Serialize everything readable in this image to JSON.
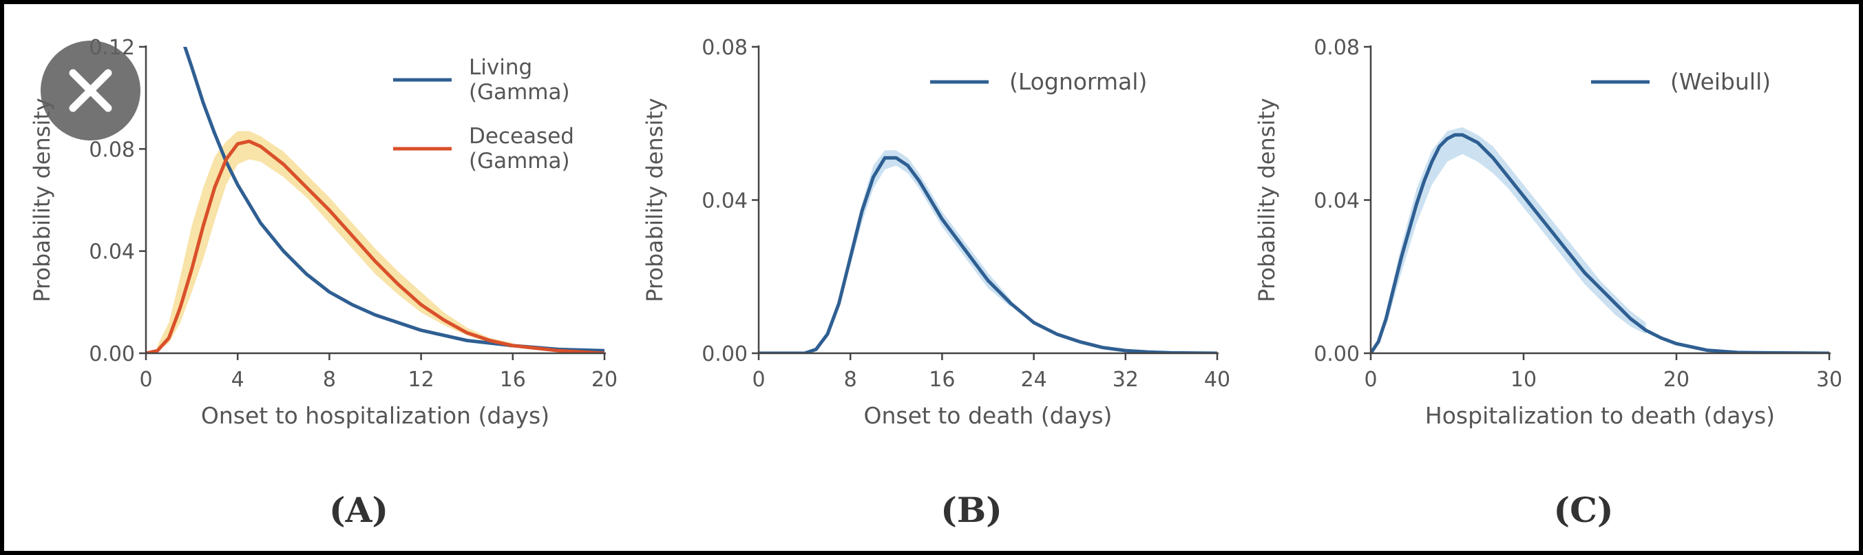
{
  "overlay": {
    "close_icon": "close-icon"
  },
  "colors": {
    "living": "#2f5f92",
    "deceased": "#d9502a",
    "band_orange": "#f6d98b",
    "band_blue": "#b9d7ec",
    "axis": "#444444",
    "text": "#555555"
  },
  "chart_data": [
    {
      "panel": "(A)",
      "type": "line",
      "xlabel": "Onset to hospitalization (days)",
      "ylabel": "Probability density",
      "xlim": [
        0,
        20
      ],
      "ylim": [
        0,
        0.12
      ],
      "xticks": [
        "0",
        "4",
        "8",
        "12",
        "16",
        "20"
      ],
      "yticks": [
        "0.00",
        "0.04",
        "0.08",
        "0.12"
      ],
      "legend_position": "top-right",
      "series": [
        {
          "name": "Living\n(Gamma)",
          "color": "#2f5f92",
          "x": [
            1.7,
            2,
            2.5,
            3,
            3.5,
            4,
            5,
            6,
            7,
            8,
            9,
            10,
            12,
            14,
            16,
            18,
            20
          ],
          "y": [
            0.12,
            0.112,
            0.098,
            0.086,
            0.075,
            0.066,
            0.051,
            0.04,
            0.031,
            0.024,
            0.019,
            0.015,
            0.009,
            0.005,
            0.003,
            0.0015,
            0.001
          ]
        },
        {
          "name": "Deceased\n(Gamma)",
          "color": "#d9502a",
          "x": [
            0,
            0.5,
            1,
            1.5,
            2,
            2.5,
            3,
            3.5,
            4,
            4.5,
            5,
            6,
            7,
            8,
            9,
            10,
            11,
            12,
            13,
            14,
            15,
            16,
            18,
            20
          ],
          "y": [
            0,
            0.001,
            0.006,
            0.018,
            0.033,
            0.05,
            0.065,
            0.076,
            0.082,
            0.083,
            0.081,
            0.074,
            0.065,
            0.056,
            0.046,
            0.036,
            0.027,
            0.019,
            0.013,
            0.008,
            0.005,
            0.003,
            0.001,
            0
          ]
        }
      ],
      "band": {
        "color": "#f6d98b",
        "x": [
          0.5,
          1,
          1.5,
          2,
          2.5,
          3,
          3.5,
          4,
          4.5,
          5,
          6,
          7,
          8,
          9,
          10,
          11,
          12,
          13,
          14,
          15,
          16
        ],
        "lower": [
          0.001,
          0.004,
          0.012,
          0.024,
          0.037,
          0.052,
          0.066,
          0.074,
          0.076,
          0.075,
          0.069,
          0.061,
          0.051,
          0.041,
          0.031,
          0.023,
          0.016,
          0.011,
          0.007,
          0.004,
          0.002
        ],
        "upper": [
          0.003,
          0.012,
          0.03,
          0.05,
          0.065,
          0.077,
          0.083,
          0.087,
          0.087,
          0.085,
          0.079,
          0.07,
          0.061,
          0.051,
          0.041,
          0.032,
          0.024,
          0.016,
          0.01,
          0.006,
          0.004
        ]
      }
    },
    {
      "panel": "(B)",
      "type": "line",
      "xlabel": "Onset to death (days)",
      "ylabel": "Probability density",
      "xlim": [
        0,
        40
      ],
      "ylim": [
        0,
        0.08
      ],
      "xticks": [
        "0",
        "8",
        "16",
        "24",
        "32",
        "40"
      ],
      "yticks": [
        "0.00",
        "0.04",
        "0.08"
      ],
      "legend_position": "top-right",
      "series": [
        {
          "name": "(Lognormal)",
          "color": "#2f5f92",
          "x": [
            0,
            4,
            5,
            6,
            7,
            8,
            9,
            10,
            11,
            12,
            13,
            14,
            15,
            16,
            18,
            20,
            22,
            24,
            26,
            28,
            30,
            32,
            34,
            36,
            40
          ],
          "y": [
            0,
            0,
            0.001,
            0.005,
            0.013,
            0.025,
            0.037,
            0.046,
            0.051,
            0.051,
            0.049,
            0.045,
            0.04,
            0.035,
            0.027,
            0.019,
            0.013,
            0.008,
            0.005,
            0.003,
            0.0015,
            0.0007,
            0.0003,
            0.0001,
            0
          ]
        }
      ],
      "band": {
        "color": "#b9d7ec",
        "x": [
          8,
          9,
          10,
          11,
          12,
          13,
          14,
          15,
          16,
          18,
          20,
          22
        ],
        "lower": [
          0.023,
          0.034,
          0.043,
          0.048,
          0.049,
          0.047,
          0.043,
          0.038,
          0.033,
          0.025,
          0.017,
          0.012
        ],
        "upper": [
          0.027,
          0.039,
          0.049,
          0.053,
          0.053,
          0.051,
          0.047,
          0.042,
          0.037,
          0.029,
          0.021,
          0.014
        ]
      }
    },
    {
      "panel": "(C)",
      "type": "line",
      "xlabel": "Hospitalization to death (days)",
      "ylabel": "Probability density",
      "xlim": [
        0,
        30
      ],
      "ylim": [
        0,
        0.08
      ],
      "xticks": [
        "0",
        "10",
        "20",
        "30"
      ],
      "yticks": [
        "0.00",
        "0.04",
        "0.08"
      ],
      "legend_position": "top-right",
      "series": [
        {
          "name": "(Weibull)",
          "color": "#2f5f92",
          "x": [
            0,
            0.5,
            1,
            1.5,
            2,
            2.5,
            3,
            3.5,
            4,
            4.5,
            5,
            5.5,
            6,
            7,
            8,
            9,
            10,
            11,
            12,
            13,
            14,
            15,
            16,
            17,
            18,
            19,
            20,
            22,
            24,
            26,
            30
          ],
          "y": [
            0,
            0.003,
            0.009,
            0.017,
            0.025,
            0.032,
            0.039,
            0.045,
            0.05,
            0.054,
            0.056,
            0.057,
            0.057,
            0.055,
            0.051,
            0.046,
            0.041,
            0.036,
            0.031,
            0.026,
            0.021,
            0.017,
            0.013,
            0.009,
            0.006,
            0.004,
            0.0025,
            0.0008,
            0.0002,
            0.0001,
            0
          ]
        }
      ],
      "band": {
        "color": "#b9d7ec",
        "x": [
          1,
          2,
          3,
          4,
          5,
          6,
          7,
          8,
          9,
          10,
          11,
          12,
          13,
          14,
          15,
          16,
          17,
          18
        ],
        "lower": [
          0.007,
          0.021,
          0.034,
          0.044,
          0.05,
          0.052,
          0.05,
          0.047,
          0.043,
          0.038,
          0.033,
          0.028,
          0.023,
          0.018,
          0.014,
          0.01,
          0.007,
          0.005
        ],
        "upper": [
          0.011,
          0.028,
          0.043,
          0.053,
          0.058,
          0.059,
          0.057,
          0.054,
          0.049,
          0.044,
          0.039,
          0.034,
          0.029,
          0.024,
          0.019,
          0.015,
          0.011,
          0.008
        ]
      }
    }
  ]
}
